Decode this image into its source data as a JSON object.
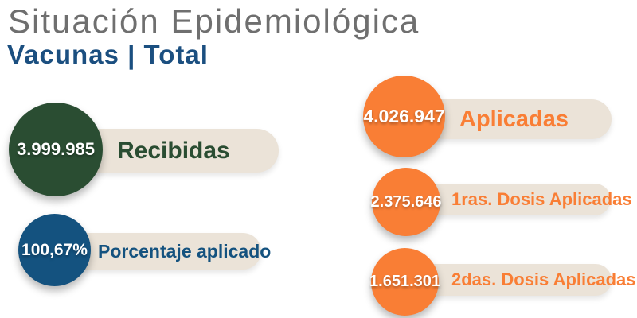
{
  "header": {
    "title": "Situación Epidemiológica",
    "subtitle": "Vacunas | Total"
  },
  "palette": {
    "green": "#2a4d32",
    "blue": "#14527f",
    "orange": "#f97e35",
    "pill_beige": "#ebe3d8",
    "title_gray": "#6f6f6f",
    "subtitle_blue": "#1b4f80",
    "value_text": "#ffffff"
  },
  "chart_data": {
    "type": "table",
    "title": "Situación Epidemiológica",
    "subtitle": "Vacunas | Total",
    "rows": [
      {
        "label": "Recibidas",
        "value": 3999985,
        "display": "3.999.985",
        "color": "#2a4d32",
        "column": "left"
      },
      {
        "label": "Porcentaje aplicado",
        "value": 100.67,
        "display": "100,67%",
        "color": "#14527f",
        "column": "left",
        "unit": "%"
      },
      {
        "label": "Aplicadas",
        "value": 4026947,
        "display": "4.026.947",
        "color": "#f97e35",
        "column": "right"
      },
      {
        "label": "1ras. Dosis Aplicadas",
        "value": 2375646,
        "display": "2.375.646",
        "color": "#f97e35",
        "column": "right"
      },
      {
        "label": "2das. Dosis Aplicadas",
        "value": 1651301,
        "display": "1.651.301",
        "color": "#f97e35",
        "column": "right"
      }
    ]
  }
}
